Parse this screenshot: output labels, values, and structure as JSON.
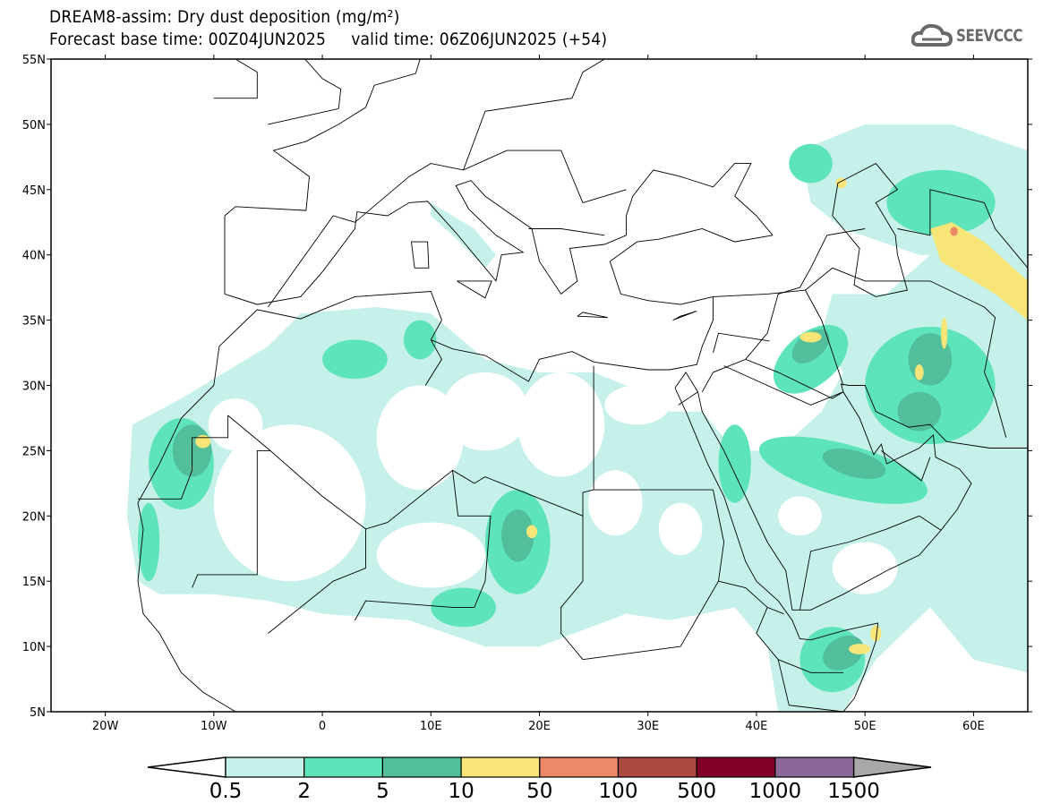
{
  "header": {
    "title_line1": "DREAM8-assim: Dry dust deposition (mg/m²)",
    "title_line2": "Forecast base time: 00Z04JUN2025     valid time: 06Z06JUN2025 (+54)",
    "logo_text": "SEEVCCC"
  },
  "map": {
    "lat_labels": [
      "55N",
      "50N",
      "45N",
      "40N",
      "35N",
      "30N",
      "25N",
      "20N",
      "15N",
      "10N",
      "5N"
    ],
    "lat_values": [
      55,
      50,
      45,
      40,
      35,
      30,
      25,
      20,
      15,
      10,
      5
    ],
    "lon_labels": [
      "20W",
      "10W",
      "0",
      "10E",
      "20E",
      "30E",
      "40E",
      "50E",
      "60E"
    ],
    "lon_values": [
      -20,
      -10,
      0,
      10,
      20,
      30,
      40,
      50,
      60
    ],
    "extent": {
      "lon": [
        -25,
        65
      ],
      "lat": [
        5,
        55
      ]
    }
  },
  "colorbar": {
    "labels": [
      "0.5",
      "2",
      "5",
      "10",
      "50",
      "100",
      "500",
      "1000",
      "1500"
    ],
    "colors": [
      "#c5f1ea",
      "#5ee4bb",
      "#52be9c",
      "#f7e677",
      "#ec8a68",
      "#ac4a42",
      "#820028",
      "#8c6899"
    ],
    "over_color": "#a8a8a8",
    "under_color": "#ffffff"
  }
}
